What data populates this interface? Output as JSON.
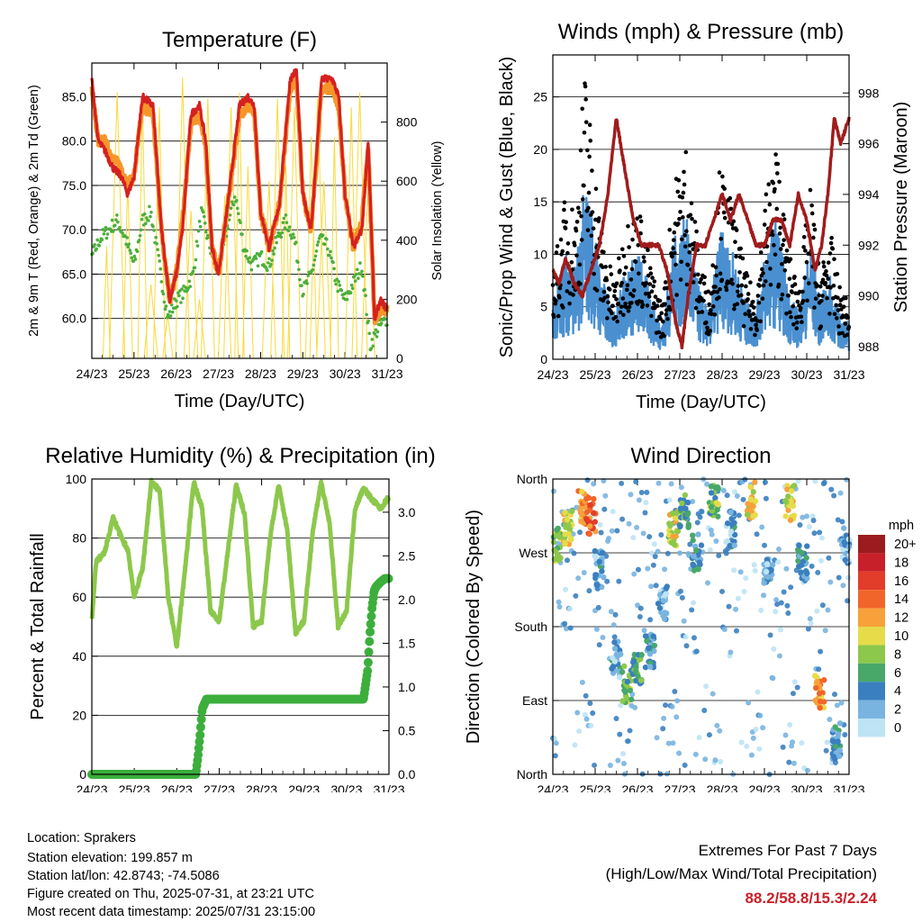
{
  "chart_data": [
    {
      "type": "line",
      "title": "Temperature (F)",
      "xlabel": "Time (Day/UTC)",
      "ylabel": "2m & 9m T (Red, Orange) & 2m Td (Green)",
      "y2label": "Solar Insolation (Yellow)",
      "x_ticks": [
        "24/23",
        "25/23",
        "26/23",
        "27/23",
        "28/23",
        "29/23",
        "30/23",
        "31/23"
      ],
      "ylim": [
        55.5,
        88.8
      ],
      "y_ticks": [
        60.0,
        65.0,
        70.0,
        75.0,
        80.0,
        85.0
      ],
      "y2lim": [
        0,
        1000
      ],
      "y2_ticks": [
        0,
        200,
        400,
        600,
        800
      ],
      "grid": true,
      "series": [
        {
          "color": "#d62020",
          "days": [
            0,
            0.15,
            0.3,
            0.5,
            0.7,
            0.85,
            1,
            1.2,
            1.45,
            1.65,
            1.85,
            2,
            2.15,
            2.35,
            2.55,
            2.7,
            2.85,
            3,
            3.2,
            3.5,
            3.7,
            3.85,
            4,
            4.2,
            4.45,
            4.7,
            4.85,
            5,
            5.2,
            5.45,
            5.7,
            5.85,
            6,
            6.2,
            6.4,
            6.55,
            6.7,
            6.85,
            7
          ],
          "values": [
            87,
            80,
            79,
            77,
            76,
            74,
            76,
            85,
            84,
            70,
            62,
            65,
            70,
            83,
            84,
            80,
            68,
            65,
            72,
            84,
            85,
            84,
            72,
            68,
            73,
            87,
            88,
            74,
            70,
            87,
            87,
            85,
            74,
            68,
            70,
            80,
            60,
            62,
            61
          ]
        },
        {
          "color": "#f5962a",
          "days": [
            0,
            0.15,
            0.3,
            0.5,
            0.7,
            0.85,
            1,
            1.2,
            1.45,
            1.65,
            1.85,
            2,
            2.15,
            2.35,
            2.55,
            2.7,
            2.85,
            3,
            3.2,
            3.5,
            3.7,
            3.85,
            4,
            4.2,
            4.45,
            4.7,
            4.85,
            5,
            5.2,
            5.45,
            5.7,
            5.85,
            6,
            6.2,
            6.4,
            6.55,
            6.7,
            6.85,
            7
          ],
          "values": [
            86,
            80,
            80,
            78,
            77,
            75,
            76,
            84,
            83,
            70,
            62,
            65,
            71,
            82,
            83,
            79,
            68,
            65,
            72,
            83,
            84,
            83,
            72,
            68,
            73,
            86,
            87,
            74,
            70,
            86,
            86,
            84,
            74,
            68,
            71,
            79,
            60,
            61,
            61
          ]
        },
        {
          "color": "#4caf3a",
          "days": [
            0,
            0.2,
            0.4,
            0.6,
            0.8,
            1,
            1.2,
            1.4,
            1.6,
            1.8,
            2,
            2.2,
            2.4,
            2.6,
            2.8,
            3,
            3.2,
            3.4,
            3.6,
            3.8,
            4,
            4.2,
            4.4,
            4.6,
            4.8,
            5,
            5.2,
            5.4,
            5.6,
            5.8,
            6,
            6.2,
            6.4,
            6.6,
            6.8,
            7
          ],
          "values": [
            67,
            69,
            70,
            71,
            69,
            66,
            71,
            72,
            66,
            60,
            62,
            63,
            65,
            72,
            68,
            65,
            70,
            74,
            68,
            66,
            67,
            66,
            69,
            71,
            69,
            63,
            65,
            69,
            68,
            64,
            62,
            64,
            66,
            57,
            59,
            60
          ]
        },
        {
          "color": "#f8da3a",
          "name": "solar_peaks_days",
          "days": [
            0.35,
            0.6,
            0.85,
            1.2,
            1.4,
            1.6,
            1.8,
            2.15,
            2.35,
            2.55,
            2.75,
            3.15,
            3.3,
            3.5,
            3.7,
            4.2,
            4.4,
            4.6,
            4.8,
            5.2,
            5.35,
            5.5,
            5.75,
            6.15,
            6.35,
            6.55
          ],
          "values": [
            380,
            900,
            600,
            900,
            250,
            850,
            150,
            950,
            500,
            200,
            880,
            550,
            850,
            900,
            650,
            600,
            880,
            650,
            850,
            750,
            880,
            600,
            750,
            850,
            900,
            600
          ]
        }
      ]
    },
    {
      "type": "scatter",
      "title": "Winds (mph) & Pressure (mb)",
      "xlabel": "Time (Day/UTC)",
      "ylabel": "Sonic/Prop Wind & Gust (Blue, Black)",
      "y2label": "Station Pressure (Maroon)",
      "x_ticks": [
        "24/23",
        "25/23",
        "26/23",
        "27/23",
        "28/23",
        "29/23",
        "30/23",
        "31/23"
      ],
      "ylim": [
        0,
        29
      ],
      "y_ticks": [
        0,
        5,
        10,
        15,
        20,
        25
      ],
      "y2lim": [
        987.5,
        999.5
      ],
      "y2_ticks": [
        988,
        990,
        992,
        994,
        996,
        998
      ],
      "grid": true,
      "gust_envelope": {
        "days": [
          0,
          0.3,
          0.55,
          0.75,
          0.95,
          1.15,
          1.45,
          1.75,
          2.05,
          2.35,
          2.6,
          2.85,
          3.15,
          3.45,
          3.7,
          3.95,
          4.25,
          4.55,
          4.8,
          5.05,
          5.3,
          5.55,
          5.8,
          6.1,
          6.3,
          6.55,
          6.75,
          7
        ],
        "values": [
          8,
          15,
          14,
          27,
          20,
          12,
          7,
          13,
          14,
          8,
          5,
          16,
          20,
          10,
          6,
          18,
          14,
          8,
          6,
          16,
          20,
          10,
          7,
          16,
          8,
          12,
          7,
          5
        ]
      },
      "sustained_envelope": {
        "days": [
          0,
          0.3,
          0.55,
          0.75,
          0.95,
          1.15,
          1.45,
          1.75,
          2.05,
          2.35,
          2.6,
          2.85,
          3.15,
          3.45,
          3.7,
          3.95,
          4.25,
          4.55,
          4.8,
          5.05,
          5.3,
          5.55,
          5.8,
          6.1,
          6.3,
          6.55,
          6.75,
          7
        ],
        "values": [
          5,
          9,
          8,
          15,
          12,
          7,
          4,
          8,
          9,
          5,
          3,
          10,
          12,
          6,
          4,
          11,
          9,
          5,
          4,
          10,
          12,
          6,
          4,
          10,
          5,
          7,
          4,
          3
        ]
      },
      "pressure": {
        "color": "#a01c1c",
        "days": [
          0,
          0.15,
          0.3,
          0.5,
          0.7,
          0.9,
          1.1,
          1.3,
          1.5,
          1.7,
          1.9,
          2.1,
          2.3,
          2.5,
          2.7,
          2.9,
          3.05,
          3.2,
          3.4,
          3.6,
          3.8,
          4.0,
          4.2,
          4.4,
          4.6,
          4.8,
          5.0,
          5.2,
          5.4,
          5.6,
          5.8,
          6.0,
          6.2,
          6.35,
          6.5,
          6.65,
          6.8,
          7
        ],
        "values": [
          991,
          990.5,
          991.5,
          990.5,
          990,
          991,
          992,
          994,
          997,
          995,
          993,
          992,
          992,
          992,
          991,
          989,
          988,
          990,
          992,
          992,
          993,
          994,
          993,
          994,
          993,
          992,
          992,
          993,
          993,
          992,
          994,
          993,
          991,
          992,
          994,
          997,
          996,
          997
        ]
      }
    },
    {
      "type": "line",
      "title": "Relative Humidity (%) & Precipitation (in)",
      "xlabel": "Time (Day/UTC)",
      "ylabel": "Percent & Total Rainfall",
      "x_ticks": [
        "24/23",
        "25/23",
        "26/23",
        "27/23",
        "28/23",
        "29/23",
        "30/23",
        "31/23"
      ],
      "ylim": [
        0,
        100
      ],
      "y_ticks": [
        0,
        20,
        40,
        60,
        80,
        100
      ],
      "y2lim": [
        0,
        3.38
      ],
      "y2_ticks": [
        "0.0",
        "0.5",
        "1.0",
        "1.5",
        "2.0",
        "2.5",
        "3.0"
      ],
      "grid": true,
      "series": [
        {
          "color": "#8cc84b",
          "days": [
            0,
            0.1,
            0.3,
            0.5,
            0.7,
            0.85,
            1.0,
            1.2,
            1.4,
            1.6,
            1.8,
            2.0,
            2.2,
            2.4,
            2.6,
            2.8,
            3.0,
            3.2,
            3.4,
            3.6,
            3.8,
            4.0,
            4.2,
            4.4,
            4.6,
            4.8,
            5.0,
            5.2,
            5.4,
            5.6,
            5.8,
            6.0,
            6.2,
            6.4,
            6.6,
            6.8,
            7
          ],
          "values": [
            52,
            72,
            75,
            87,
            80,
            76,
            60,
            70,
            99,
            96,
            60,
            43,
            70,
            99,
            90,
            55,
            52,
            75,
            98,
            88,
            50,
            52,
            80,
            98,
            83,
            48,
            52,
            82,
            99,
            85,
            50,
            55,
            90,
            97,
            93,
            90,
            94
          ]
        },
        {
          "color": "#3cae3c",
          "name": "precip_in",
          "days": [
            0,
            1,
            2,
            2.45,
            2.5,
            2.55,
            2.6,
            2.7,
            3,
            4,
            5,
            6,
            6.4,
            6.5,
            6.55,
            6.6,
            6.65,
            6.7,
            6.8,
            6.9,
            7
          ],
          "values": [
            0,
            0,
            0,
            0,
            0.2,
            0.45,
            0.75,
            0.86,
            0.86,
            0.86,
            0.86,
            0.86,
            0.86,
            1.2,
            1.6,
            1.9,
            2.1,
            2.15,
            2.2,
            2.24,
            2.24
          ]
        }
      ]
    },
    {
      "type": "scatter",
      "title": "Wind Direction",
      "xlabel": "Time (Day/UTC)",
      "ylabel": "Direction (Colored By Speed)",
      "x_ticks": [
        "24/23",
        "25/23",
        "26/23",
        "27/23",
        "28/23",
        "29/23",
        "30/23",
        "31/23"
      ],
      "y_ticks": [
        "North",
        "East",
        "South",
        "West",
        "North"
      ],
      "legend_title": "mph",
      "legend_labels": [
        "20+",
        "18",
        "16",
        "14",
        "12",
        "10",
        "8",
        "6",
        "4",
        "2",
        "0"
      ],
      "legend_colors": [
        "#9b1b1e",
        "#c8202a",
        "#e23c2a",
        "#f2652a",
        "#f8a13a",
        "#e6dc4a",
        "#8cc84b",
        "#48a86a",
        "#3a7fbf",
        "#79b4e0",
        "#bde3f5"
      ],
      "legend_placement": "right",
      "clusters": [
        {
          "day": 0.1,
          "dir": 280,
          "speed": 8
        },
        {
          "day": 0.35,
          "dir": 300,
          "speed": 10
        },
        {
          "day": 0.7,
          "dir": 325,
          "speed": 12
        },
        {
          "day": 0.9,
          "dir": 315,
          "speed": 15
        },
        {
          "day": 1.1,
          "dir": 250,
          "speed": 3
        },
        {
          "day": 1.5,
          "dir": 140,
          "speed": 3
        },
        {
          "day": 1.75,
          "dir": 110,
          "speed": 7
        },
        {
          "day": 2.0,
          "dir": 130,
          "speed": 6
        },
        {
          "day": 2.3,
          "dir": 150,
          "speed": 4
        },
        {
          "day": 2.6,
          "dir": 210,
          "speed": 2
        },
        {
          "day": 2.85,
          "dir": 300,
          "speed": 9
        },
        {
          "day": 3.1,
          "dir": 320,
          "speed": 6
        },
        {
          "day": 3.4,
          "dir": 270,
          "speed": 4
        },
        {
          "day": 3.8,
          "dir": 335,
          "speed": 7
        },
        {
          "day": 4.2,
          "dir": 300,
          "speed": 3
        },
        {
          "day": 4.7,
          "dir": 335,
          "speed": 10
        },
        {
          "day": 5.1,
          "dir": 240,
          "speed": 3
        },
        {
          "day": 5.6,
          "dir": 330,
          "speed": 10
        },
        {
          "day": 5.9,
          "dir": 260,
          "speed": 4
        },
        {
          "day": 6.3,
          "dir": 100,
          "speed": 12
        },
        {
          "day": 6.7,
          "dir": 40,
          "speed": 3
        },
        {
          "day": 6.9,
          "dir": 280,
          "speed": 2
        }
      ]
    }
  ],
  "station": {
    "location": "Location: Sprakers",
    "elevation": "Station elevation: 199.857 m",
    "latlon": "Station lat/lon: 42.8743; -74.5086",
    "created": "Figure created on Thu, 2025-07-31, at 23:21 UTC",
    "recent": "Most recent data timestamp: 2025/07/31 23:15:00"
  },
  "extremes": {
    "heading": "Extremes For Past 7 Days",
    "subheading": "(High/Low/Max Wind/Total Precipitation)",
    "values": "88.2/58.8/15.3/2.24"
  }
}
